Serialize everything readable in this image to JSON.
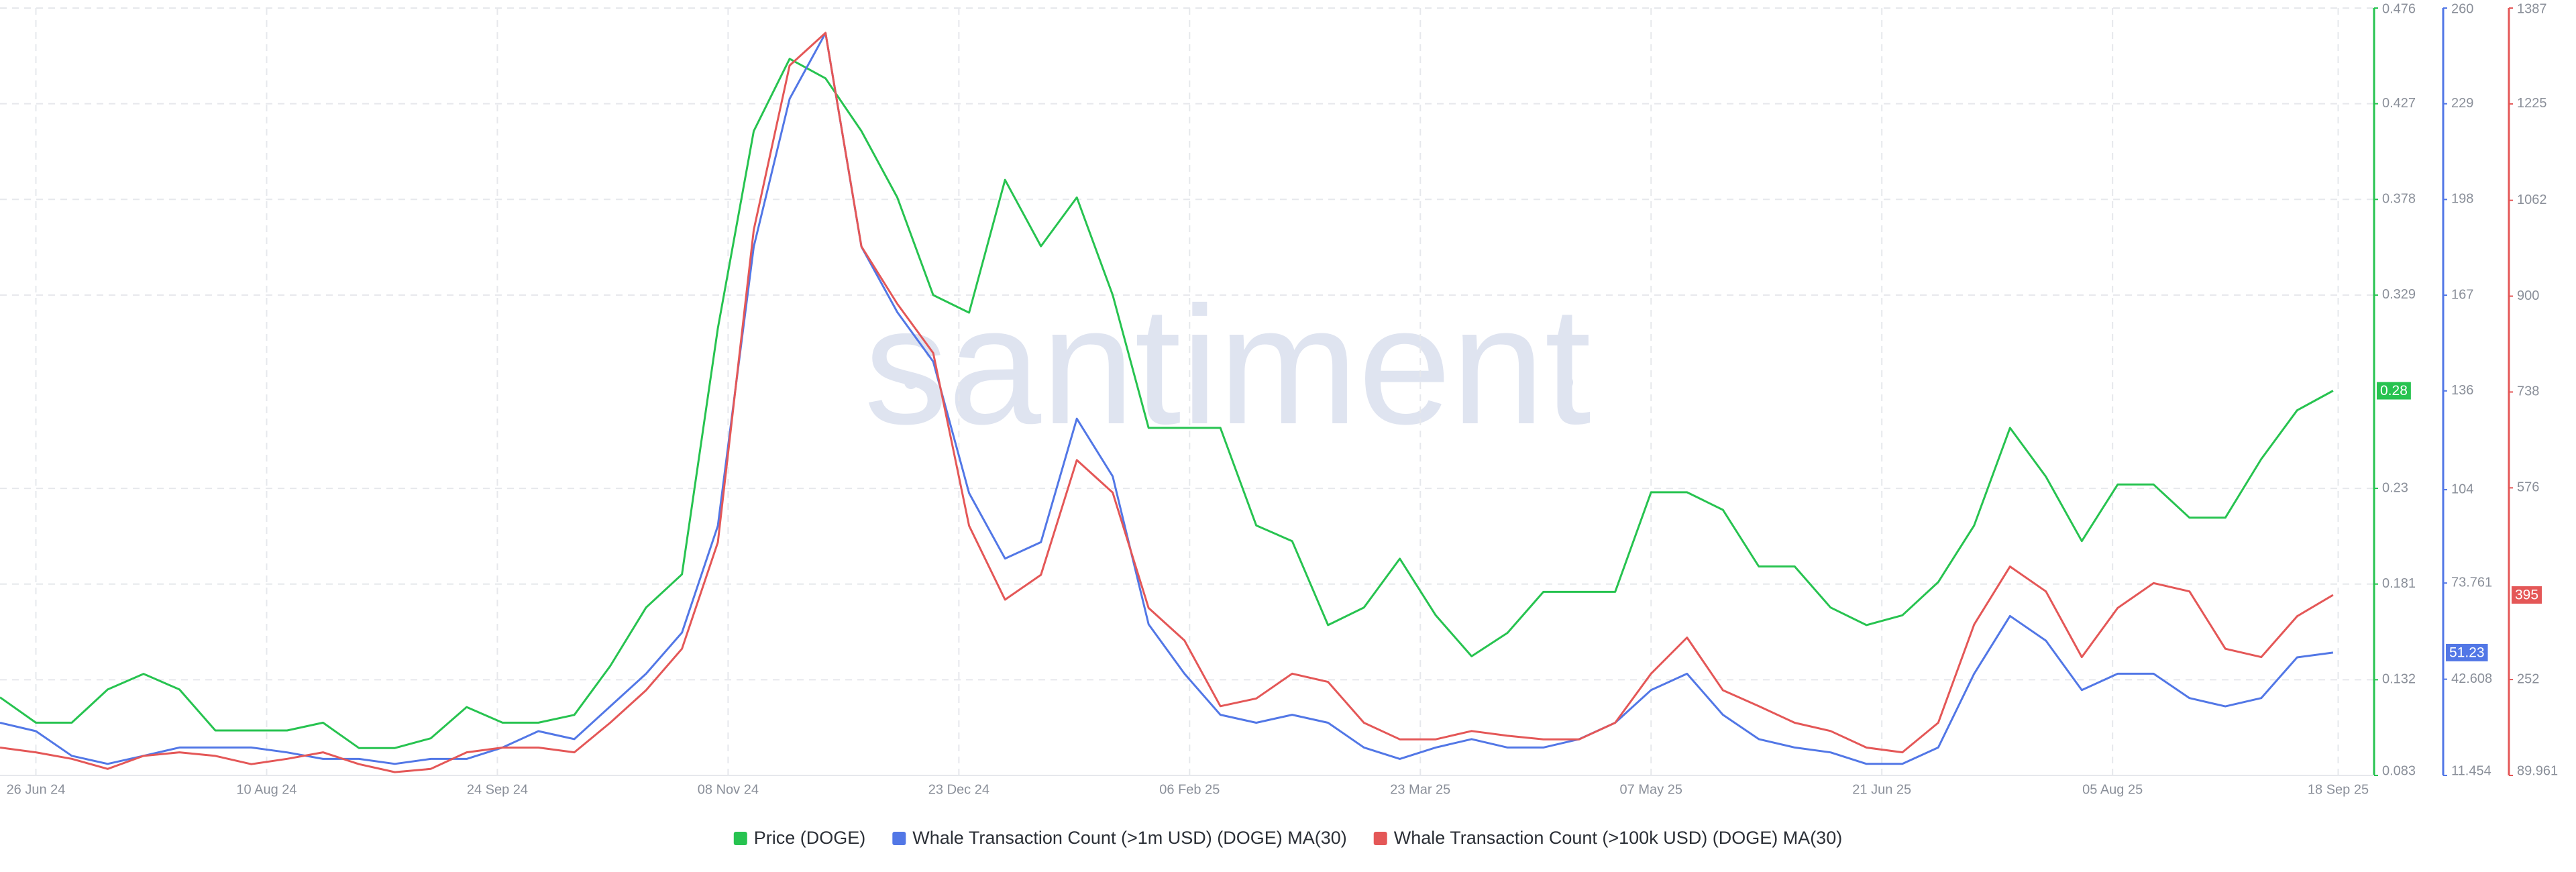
{
  "chart_data": {
    "type": "line",
    "watermark": "santiment",
    "x": [
      "19 Jun 24",
      "26 Jun 24",
      "03 Jul 24",
      "10 Jul 24",
      "17 Jul 24",
      "24 Jul 24",
      "31 Jul 24",
      "07 Aug 24",
      "14 Aug 24",
      "21 Aug 24",
      "28 Aug 24",
      "04 Sep 24",
      "11 Sep 24",
      "18 Sep 24",
      "25 Sep 24",
      "02 Oct 24",
      "09 Oct 24",
      "16 Oct 24",
      "23 Oct 24",
      "30 Oct 24",
      "06 Nov 24",
      "13 Nov 24",
      "20 Nov 24",
      "27 Nov 24",
      "04 Dec 24",
      "11 Dec 24",
      "18 Dec 24",
      "25 Dec 24",
      "01 Jan 25",
      "08 Jan 25",
      "15 Jan 25",
      "22 Jan 25",
      "29 Jan 25",
      "05 Feb 25",
      "12 Feb 25",
      "19 Feb 25",
      "26 Feb 25",
      "05 Mar 25",
      "12 Mar 25",
      "19 Mar 25",
      "26 Mar 25",
      "02 Apr 25",
      "09 Apr 25",
      "16 Apr 25",
      "23 Apr 25",
      "30 Apr 25",
      "07 May 25",
      "14 May 25",
      "21 May 25",
      "28 May 25",
      "04 Jun 25",
      "11 Jun 25",
      "18 Jun 25",
      "25 Jun 25",
      "02 Jul 25",
      "09 Jul 25",
      "16 Jul 25",
      "23 Jul 25",
      "30 Jul 25",
      "06 Aug 25",
      "13 Aug 25",
      "20 Aug 25",
      "27 Aug 25",
      "03 Sep 25",
      "10 Sep 25",
      "17 Sep 25"
    ],
    "xlim": [
      "19 Jun 24",
      "25 Sep 25"
    ],
    "xticks": [
      "26 Jun 24",
      "10 Aug 24",
      "24 Sep 24",
      "08 Nov 24",
      "23 Dec 24",
      "06 Feb 25",
      "23 Mar 25",
      "07 May 25",
      "21 Jun 25",
      "05 Aug 25",
      "18 Sep 25"
    ],
    "ylim": [
      0.083,
      0.476
    ],
    "yticks": [
      0.083,
      0.132,
      0.181,
      0.23,
      0.329,
      0.378,
      0.427,
      0.476
    ],
    "y2lim": [
      11.454,
      260
    ],
    "y2ticks": [
      11.454,
      42.608,
      73.761,
      104,
      136,
      167,
      198,
      229,
      260
    ],
    "y3lim": [
      89.961,
      1387
    ],
    "y3ticks": [
      89.961,
      252,
      576,
      738,
      900,
      1062,
      1225,
      1387
    ],
    "grid": true,
    "series": [
      {
        "name": "Price (DOGE)",
        "color": "#27c350",
        "axis": "y",
        "last_label": "0.28",
        "values": [
          0.123,
          0.11,
          0.11,
          0.127,
          0.135,
          0.127,
          0.106,
          0.106,
          0.106,
          0.11,
          0.097,
          0.097,
          0.102,
          0.118,
          0.11,
          0.11,
          0.114,
          0.139,
          0.169,
          0.186,
          0.312,
          0.413,
          0.45,
          0.44,
          0.413,
          0.379,
          0.329,
          0.32,
          0.388,
          0.354,
          0.379,
          0.329,
          0.261,
          0.261,
          0.261,
          0.211,
          0.203,
          0.16,
          0.169,
          0.194,
          0.165,
          0.144,
          0.156,
          0.177,
          0.177,
          0.177,
          0.228,
          0.228,
          0.219,
          0.19,
          0.19,
          0.169,
          0.16,
          0.165,
          0.182,
          0.211,
          0.261,
          0.236,
          0.203,
          0.232,
          0.232,
          0.215,
          0.215,
          0.245,
          0.27,
          0.28
        ]
      },
      {
        "name": "Whale Transaction Count (>1m USD) (DOGE) MA(30)",
        "color": "#5277e6",
        "axis": "y2",
        "last_label": "51.23",
        "values": [
          28.5,
          25.8,
          17.8,
          15.2,
          17.8,
          20.5,
          20.5,
          20.5,
          18.9,
          16.8,
          16.8,
          15.2,
          16.8,
          16.8,
          20.5,
          25.8,
          23.2,
          33.8,
          44.4,
          57.7,
          92.3,
          182.7,
          230.6,
          251.9,
          182.7,
          161.5,
          145.5,
          102.9,
          81.7,
          87,
          127,
          108.3,
          60.4,
          44.4,
          31.1,
          28.5,
          31.1,
          28.5,
          20.5,
          16.8,
          20.5,
          23.2,
          20.5,
          20.5,
          23.2,
          28.5,
          39.1,
          44.4,
          31.1,
          23.2,
          20.5,
          18.9,
          15.2,
          15.2,
          20.5,
          44.4,
          63.1,
          55.1,
          39.1,
          44.4,
          44.4,
          36.5,
          33.8,
          36.5,
          49.7,
          51.23
        ]
      },
      {
        "name": "Whale Transaction Count (>100k USD) (DOGE) MA(30)",
        "color": "#e45757",
        "axis": "y3",
        "last_label": "395",
        "values": [
          137,
          129,
          118,
          101,
          123,
          129,
          123,
          109,
          118,
          129,
          109,
          95.5,
          101,
          129,
          137,
          137,
          129,
          179,
          234,
          304,
          484,
          1012,
          1290,
          1345,
          984,
          887,
          804,
          512,
          387,
          429,
          623,
          568,
          373,
          318,
          207,
          220,
          262,
          248,
          179,
          151,
          151,
          165,
          157,
          151,
          151,
          179,
          262,
          323,
          234,
          207,
          179,
          165,
          137,
          129,
          179,
          345,
          443,
          401,
          290,
          373,
          415,
          401,
          304,
          290,
          359,
          395
        ]
      }
    ]
  }
}
